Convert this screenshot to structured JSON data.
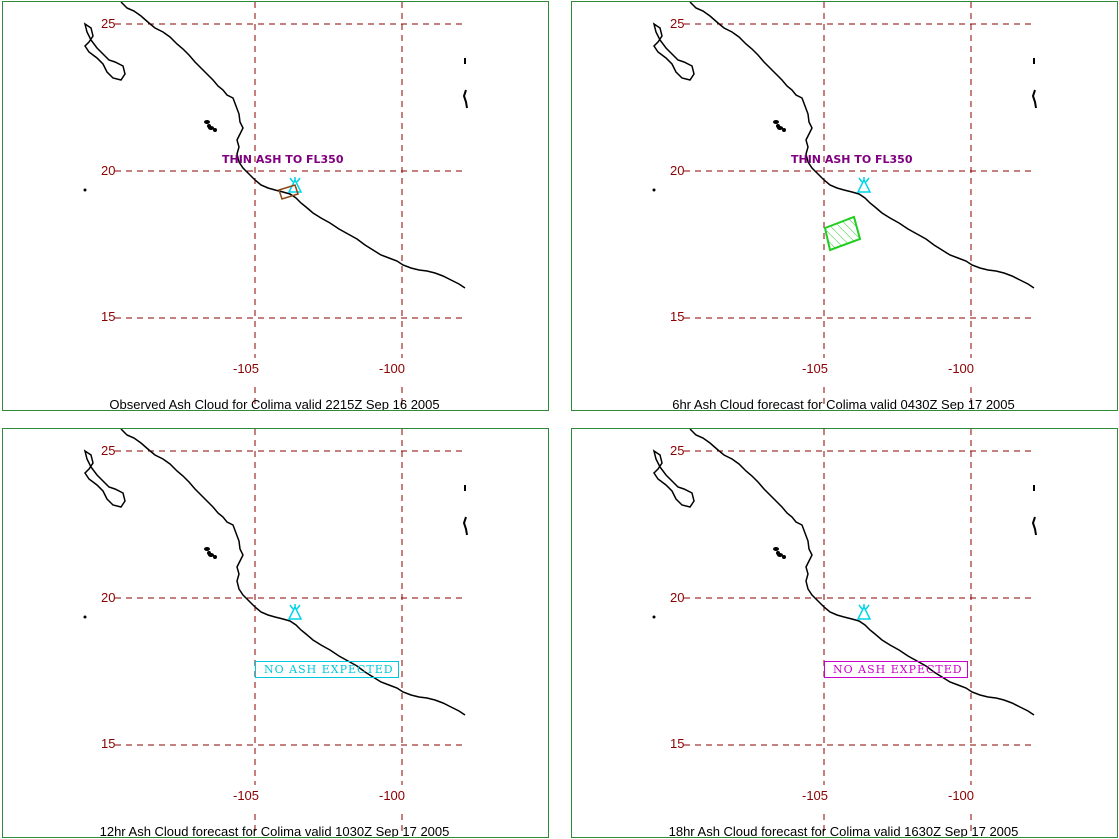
{
  "colors": {
    "panel_border": "#2e8b3a",
    "grid": "#8b0000",
    "coast": "#000000",
    "volcano": "#00d4e8",
    "observed_ash": "#8b4513",
    "forecast_ash": "#22cc22",
    "thin_label": "#800080",
    "noash_12hr": "#00c8dc",
    "noash_18hr": "#cc00cc"
  },
  "axes": {
    "lat_ticks": [
      "25",
      "20",
      "15"
    ],
    "lon_ticks": [
      "-105",
      "-100"
    ]
  },
  "panels": [
    {
      "caption": "Observed Ash Cloud for Colima valid 2215Z Sep 16 2005",
      "volcano_icon": "volcano-icon",
      "thin_label": "THIN ASH TO FL350",
      "ash": "observed"
    },
    {
      "caption": "6hr Ash Cloud forecast for Colima valid 0430Z Sep 17 2005",
      "volcano_icon": "volcano-icon",
      "thin_label": "THIN ASH TO FL350",
      "ash": "forecast"
    },
    {
      "caption": "12hr Ash Cloud forecast for Colima valid 1030Z Sep 17 2005",
      "volcano_icon": "volcano-icon",
      "no_ash": "NO ASH EXPECTED"
    },
    {
      "caption": "18hr Ash Cloud forecast for Colima valid 1630Z Sep 17 2005",
      "volcano_icon": "volcano-icon",
      "no_ash": "NO ASH EXPECTED"
    }
  ]
}
